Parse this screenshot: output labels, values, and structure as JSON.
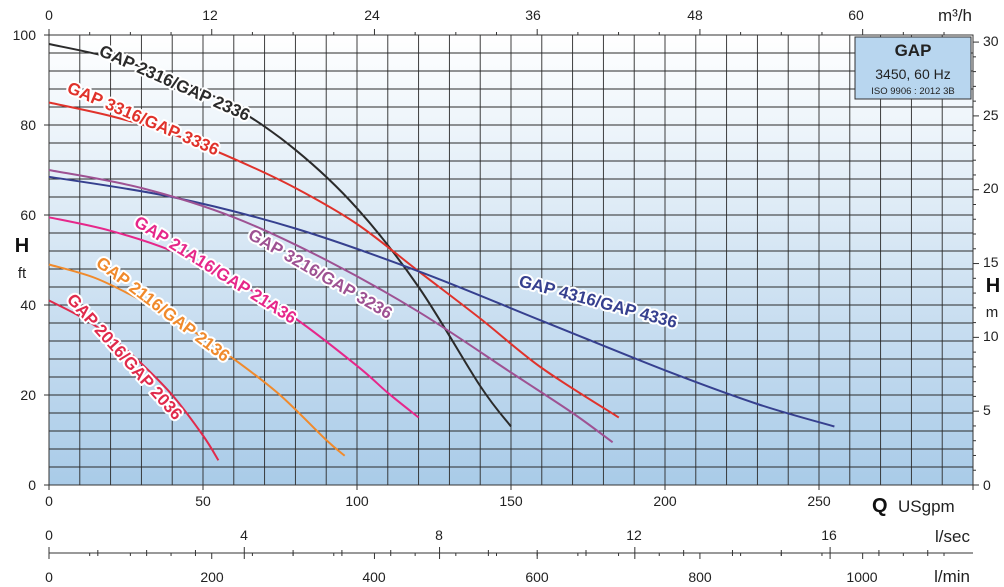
{
  "chart_data": {
    "type": "line",
    "info_box": {
      "title": "GAP",
      "speed": "3450, 60 Hz",
      "standard": "ISO 9906 : 2012 3B"
    },
    "y_left": {
      "label": "H",
      "unit": "ft",
      "ticks": [
        "0",
        "20",
        "40",
        "60",
        "80",
        "100"
      ],
      "range": [
        0,
        100
      ]
    },
    "y_right": {
      "label": "H",
      "unit": "m",
      "ticks": [
        "0",
        "5",
        "10",
        "15",
        "20",
        "25",
        "30"
      ]
    },
    "x_top": {
      "unit": "m³/h",
      "ticks": [
        "0",
        "12",
        "24",
        "36",
        "48",
        "60"
      ]
    },
    "x_usgpm": {
      "label": "Q",
      "unit": "USgpm",
      "ticks": [
        "0",
        "50",
        "100",
        "150",
        "200",
        "250"
      ],
      "range": [
        0,
        300
      ]
    },
    "x_lsec": {
      "unit": "l/sec",
      "ticks": [
        "0",
        "4",
        "8",
        "12",
        "16"
      ]
    },
    "x_lmin": {
      "unit": "l/min",
      "ticks": [
        "0",
        "200",
        "400",
        "600",
        "800",
        "1000"
      ]
    },
    "series": [
      {
        "name": "GAP 2316/GAP 2336",
        "color": "#2b2b2b",
        "points": [
          [
            0,
            98
          ],
          [
            20,
            95
          ],
          [
            40,
            90.5
          ],
          [
            60,
            84
          ],
          [
            80,
            74.5
          ],
          [
            100,
            61.5
          ],
          [
            120,
            44
          ],
          [
            140,
            22
          ],
          [
            150,
            13
          ]
        ]
      },
      {
        "name": "GAP 3316/GAP 3336",
        "color": "#e0322b",
        "points": [
          [
            0,
            85
          ],
          [
            20,
            82
          ],
          [
            40,
            78
          ],
          [
            60,
            72.5
          ],
          [
            80,
            66
          ],
          [
            100,
            58
          ],
          [
            120,
            47.5
          ],
          [
            140,
            37
          ],
          [
            160,
            26
          ],
          [
            185,
            15
          ]
        ]
      },
      {
        "name": "GAP 4316/GAP 4336",
        "color": "#36408f",
        "points": [
          [
            0,
            68.5
          ],
          [
            40,
            64
          ],
          [
            80,
            57
          ],
          [
            120,
            47.5
          ],
          [
            160,
            36.5
          ],
          [
            200,
            25.5
          ],
          [
            230,
            18
          ],
          [
            255,
            13
          ]
        ]
      },
      {
        "name": "GAP 3216/GAP 3236",
        "color": "#9e5293",
        "points": [
          [
            0,
            70
          ],
          [
            30,
            66
          ],
          [
            60,
            59.5
          ],
          [
            90,
            50
          ],
          [
            120,
            38.5
          ],
          [
            150,
            25
          ],
          [
            170,
            16
          ],
          [
            183,
            9.5
          ]
        ]
      },
      {
        "name": "GAP 21A16/GAP 21A36",
        "color": "#e6278a",
        "points": [
          [
            0,
            59.5
          ],
          [
            20,
            56.5
          ],
          [
            40,
            52
          ],
          [
            60,
            45.5
          ],
          [
            80,
            37
          ],
          [
            100,
            26.5
          ],
          [
            110,
            20.5
          ],
          [
            120,
            15
          ]
        ]
      },
      {
        "name": "GAP 2116/GAP 2136",
        "color": "#f08a2c",
        "points": [
          [
            0,
            49
          ],
          [
            15,
            46
          ],
          [
            30,
            41
          ],
          [
            45,
            35
          ],
          [
            60,
            28
          ],
          [
            75,
            20
          ],
          [
            90,
            10
          ],
          [
            96,
            6.5
          ]
        ]
      },
      {
        "name": "GAP 2016/GAP 2036",
        "color": "#e02a4b",
        "points": [
          [
            0,
            41
          ],
          [
            10,
            37.5
          ],
          [
            20,
            33
          ],
          [
            30,
            27
          ],
          [
            40,
            20
          ],
          [
            50,
            11
          ],
          [
            55,
            5.5
          ]
        ]
      }
    ]
  }
}
